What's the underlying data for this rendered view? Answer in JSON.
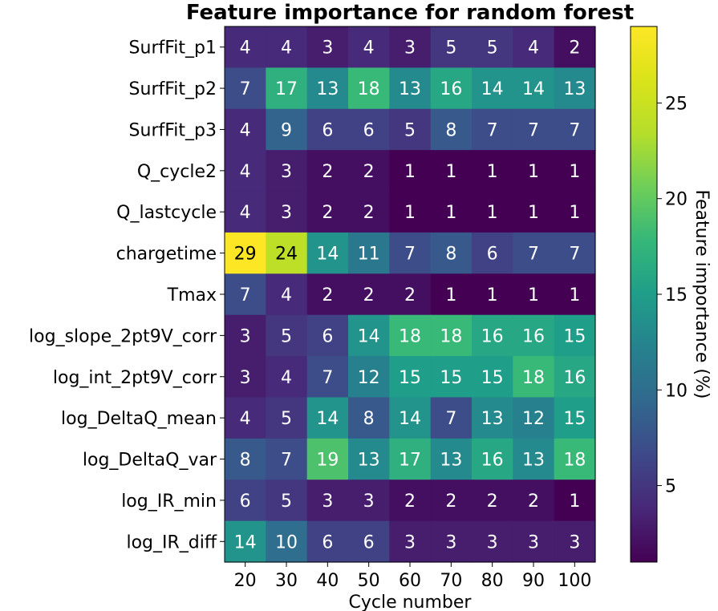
{
  "chart_data": {
    "type": "heatmap",
    "title": "Feature importance for random forest",
    "xlabel": "Cycle number",
    "ylabel": "",
    "x_categories": [
      "20",
      "30",
      "40",
      "50",
      "60",
      "70",
      "80",
      "90",
      "100"
    ],
    "y_categories": [
      "SurfFit_p1",
      "SurfFit_p2",
      "SurfFit_p3",
      "Q_cycle2",
      "Q_lastcycle",
      "chargetime",
      "Tmax",
      "log_slope_2pt9V_corr",
      "log_int_2pt9V_corr",
      "log_DeltaQ_mean",
      "log_DeltaQ_var",
      "log_IR_min",
      "log_IR_diff"
    ],
    "values": [
      [
        4,
        4,
        3,
        4,
        3,
        5,
        5,
        4,
        2
      ],
      [
        7,
        17,
        13,
        18,
        13,
        16,
        14,
        14,
        13
      ],
      [
        4,
        9,
        6,
        6,
        5,
        8,
        7,
        7,
        7
      ],
      [
        4,
        3,
        2,
        2,
        1,
        1,
        1,
        1,
        1
      ],
      [
        4,
        3,
        2,
        2,
        1,
        1,
        1,
        1,
        1
      ],
      [
        29,
        24,
        14,
        11,
        7,
        8,
        6,
        7,
        7
      ],
      [
        7,
        4,
        2,
        2,
        2,
        1,
        1,
        1,
        1
      ],
      [
        3,
        5,
        6,
        14,
        18,
        18,
        16,
        16,
        15
      ],
      [
        3,
        4,
        7,
        12,
        15,
        15,
        15,
        18,
        16
      ],
      [
        4,
        5,
        14,
        8,
        14,
        7,
        13,
        12,
        15
      ],
      [
        8,
        7,
        19,
        13,
        17,
        13,
        16,
        13,
        18
      ],
      [
        6,
        5,
        3,
        3,
        2,
        2,
        2,
        2,
        1
      ],
      [
        14,
        10,
        6,
        6,
        3,
        3,
        3,
        3,
        3
      ]
    ],
    "colormap": "viridis",
    "colorbar": {
      "label": "Feature importance (%)",
      "range": [
        1,
        29
      ],
      "ticks": [
        "5",
        "10",
        "15",
        "20",
        "25"
      ]
    },
    "grid": false
  }
}
